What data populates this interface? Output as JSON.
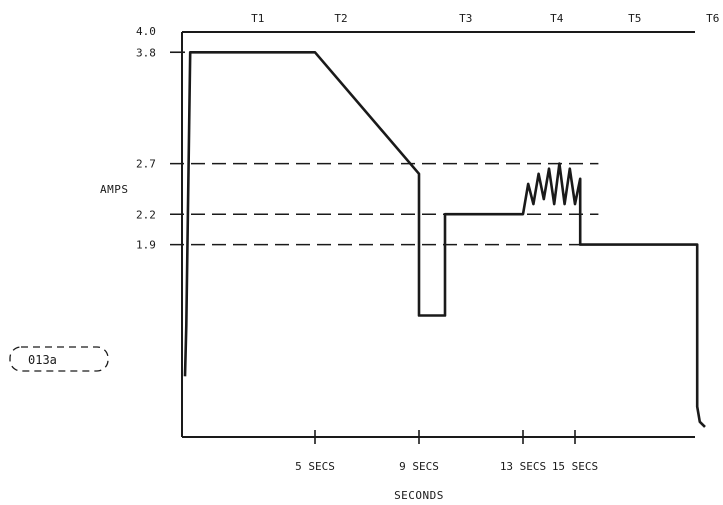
{
  "chart_data": {
    "type": "line",
    "xlabel": "SECONDS",
    "ylabel": "AMPS",
    "xlim": [
      0,
      21
    ],
    "ylim": [
      0,
      4.0
    ],
    "grid": false,
    "y_ticks": [
      {
        "value": 4.0,
        "label": "4.0"
      },
      {
        "value": 3.8,
        "label": "3.8"
      },
      {
        "value": 2.7,
        "label": "2.7"
      },
      {
        "value": 2.2,
        "label": "2.2"
      },
      {
        "value": 1.9,
        "label": "1.9"
      }
    ],
    "x_ticks": [
      {
        "value": 5,
        "label": "5 SECS"
      },
      {
        "value": 9,
        "label": "9 SECS"
      },
      {
        "value": 13,
        "label": "13 SECS"
      },
      {
        "value": 15,
        "label": "15 SECS"
      }
    ],
    "phases": [
      {
        "label": "T1",
        "x": 2.8
      },
      {
        "label": "T2",
        "x": 6.0
      },
      {
        "label": "T3",
        "x": 10.8
      },
      {
        "label": "T4",
        "x": 14.3
      },
      {
        "label": "T5",
        "x": 17.3
      },
      {
        "label": "T6",
        "x": 20.3
      }
    ],
    "reference_lines": [
      {
        "y": 2.7,
        "style": "dashed",
        "x_end": 15.9
      },
      {
        "y": 2.2,
        "style": "dashed",
        "x_end": 15.9
      },
      {
        "y": 1.9,
        "style": "dashed",
        "x_end": 15.9
      }
    ],
    "top_line": {
      "y": 4.0,
      "style": "solid"
    },
    "series": [
      {
        "x": [
          0.0,
          0.05,
          0.2,
          0.5,
          5.0,
          9.0,
          9.0,
          10.0,
          10.0,
          13.0,
          13.2,
          13.4,
          13.6,
          13.8,
          14.0,
          14.2,
          14.4,
          14.6,
          14.8,
          15.0,
          15.2,
          15.2,
          19.7,
          19.7,
          19.8,
          20.0
        ],
        "y": [
          0.6,
          1.1,
          3.8,
          3.8,
          3.8,
          2.6,
          1.2,
          1.2,
          2.2,
          2.2,
          2.5,
          2.3,
          2.6,
          2.35,
          2.65,
          2.3,
          2.7,
          2.3,
          2.65,
          2.3,
          2.55,
          1.9,
          1.9,
          0.3,
          0.15,
          0.1
        ]
      }
    ]
  },
  "figure_label": "013a"
}
